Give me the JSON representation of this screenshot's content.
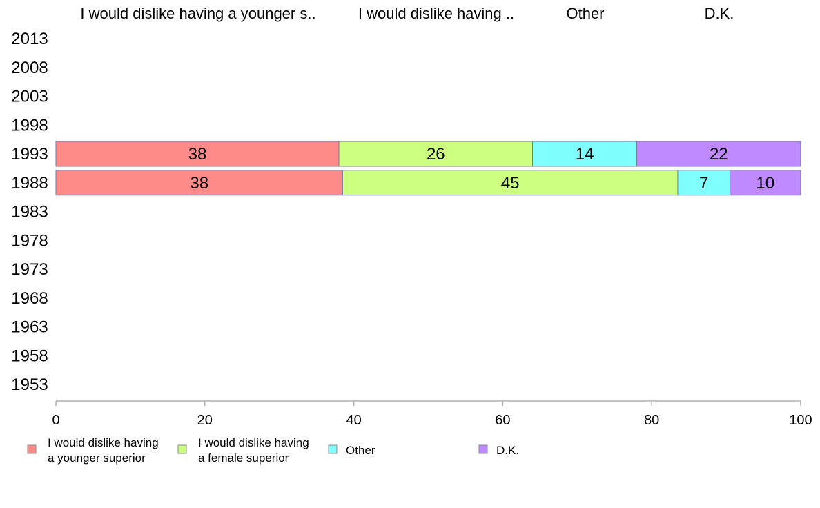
{
  "chart_data": {
    "type": "bar",
    "orientation": "horizontal",
    "stacked": true,
    "categories": [
      "2013",
      "2008",
      "2003",
      "1998",
      "1993",
      "1988",
      "1983",
      "1978",
      "1973",
      "1968",
      "1963",
      "1958",
      "1953"
    ],
    "series": [
      {
        "name": "I would dislike having a younger superior",
        "top_label": "I would dislike having a younger s..",
        "legend_lines": [
          "I would dislike having",
          "a younger superior"
        ],
        "color": "#ff8a8a",
        "values": [
          null,
          null,
          null,
          null,
          38,
          38.5,
          null,
          null,
          null,
          null,
          null,
          null,
          null
        ]
      },
      {
        "name": "I would dislike having a female superior",
        "top_label": "I would dislike having ..",
        "legend_lines": [
          "I would dislike having",
          "a female superior"
        ],
        "color": "#ccff80",
        "values": [
          null,
          null,
          null,
          null,
          26,
          45,
          null,
          null,
          null,
          null,
          null,
          null,
          null
        ]
      },
      {
        "name": "Other",
        "top_label": "Other",
        "legend_lines": [
          "Other"
        ],
        "color": "#80ffff",
        "values": [
          null,
          null,
          null,
          null,
          14,
          7,
          null,
          null,
          null,
          null,
          null,
          null,
          null
        ]
      },
      {
        "name": "D.K.",
        "top_label": "D.K.",
        "legend_lines": [
          "D.K."
        ],
        "color": "#bf8aff",
        "values": [
          null,
          null,
          null,
          null,
          22,
          10,
          null,
          null,
          null,
          null,
          null,
          null,
          null
        ]
      }
    ],
    "bar_labels": {
      "1993": [
        "38",
        "26",
        "14",
        "22"
      ],
      "1988": [
        "38",
        "45",
        "7",
        "10"
      ]
    },
    "x_ticks": [
      "0",
      "20",
      "40",
      "60",
      "80",
      "100"
    ],
    "xlim": [
      0,
      100
    ],
    "title": "",
    "xlabel": "",
    "ylabel": "",
    "grid": false,
    "legend_position": "bottom"
  }
}
